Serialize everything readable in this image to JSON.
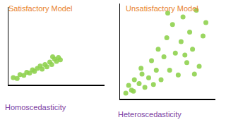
{
  "chart_data": [
    {
      "type": "scatter",
      "title": "Satisfactory Model",
      "xlabel": "Homoscedasticity",
      "color": "#8fd14f",
      "marker": "circle",
      "tick_labels": false,
      "grid": false,
      "xlim": [
        0,
        10
      ],
      "ylim": [
        0,
        10
      ],
      "x": [
        0.5,
        0.9,
        1.2,
        1.6,
        1.9,
        2.2,
        2.5,
        2.7,
        3.0,
        3.3,
        3.5,
        3.8,
        4.0,
        4.3,
        4.5,
        4.8,
        5.0,
        5.2,
        5.4,
        4.6
      ],
      "values": [
        0.9,
        0.8,
        1.3,
        1.2,
        1.6,
        1.5,
        1.9,
        1.7,
        2.1,
        2.4,
        2.0,
        2.6,
        2.3,
        2.9,
        2.6,
        3.3,
        3.0,
        3.5,
        3.2,
        3.6
      ]
    },
    {
      "type": "scatter",
      "title": "Unsatisfactory Model",
      "xlabel": "Heteroscedasticity",
      "color": "#8fd14f",
      "marker": "circle",
      "tick_labels": false,
      "grid": false,
      "xlim": [
        0,
        10
      ],
      "ylim": [
        0,
        10
      ],
      "x": [
        0.6,
        0.9,
        1.2,
        1.5,
        1.4,
        2.0,
        2.3,
        2.6,
        2.2,
        3.0,
        3.3,
        3.5,
        3.8,
        4.0,
        4.3,
        4.6,
        4.9,
        5.2,
        5.5,
        5.8,
        6.1,
        6.4,
        6.6,
        7.0,
        7.3,
        7.6,
        8.0,
        8.3,
        8.7,
        9.0,
        5.0,
        6.8,
        7.8
      ],
      "values": [
        0.6,
        1.4,
        0.9,
        2.0,
        0.8,
        1.6,
        2.6,
        1.2,
        3.2,
        2.2,
        4.0,
        1.5,
        3.0,
        5.2,
        2.0,
        4.4,
        6.4,
        3.0,
        7.8,
        4.8,
        2.5,
        6.0,
        8.6,
        3.8,
        7.0,
        5.2,
        9.3,
        3.4,
        6.6,
        8.0,
        9.0,
        4.6,
        2.6
      ]
    }
  ]
}
